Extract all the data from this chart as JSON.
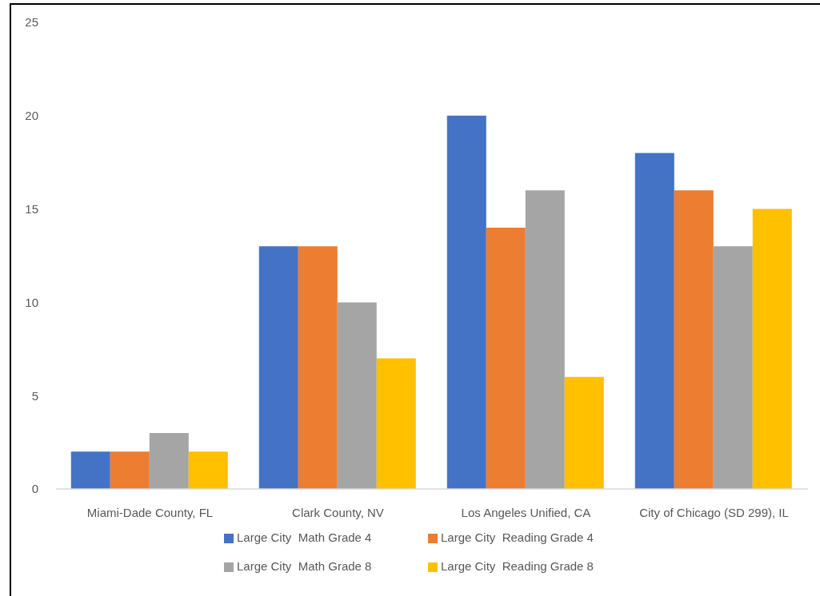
{
  "chart_data": {
    "type": "bar",
    "categories": [
      "Miami-Dade County, FL",
      "Clark County, NV",
      "Los Angeles Unified, CA",
      "City of Chicago (SD 299), IL"
    ],
    "series": [
      {
        "name": "Large City  Math Grade 4",
        "color": "#4472c4",
        "values": [
          2,
          13,
          20,
          18
        ]
      },
      {
        "name": "Large City  Reading Grade 4",
        "color": "#ed7d31",
        "values": [
          2,
          13,
          14,
          16
        ]
      },
      {
        "name": "Large City  Math Grade 8",
        "color": "#a5a5a5",
        "values": [
          3,
          10,
          16,
          13
        ]
      },
      {
        "name": "Large City  Reading Grade 8",
        "color": "#ffc000",
        "values": [
          2,
          7,
          6,
          15
        ]
      }
    ],
    "ylim": [
      0,
      25
    ],
    "yticks": [
      0,
      5,
      10,
      15,
      20,
      25
    ],
    "legend": "bottom"
  }
}
